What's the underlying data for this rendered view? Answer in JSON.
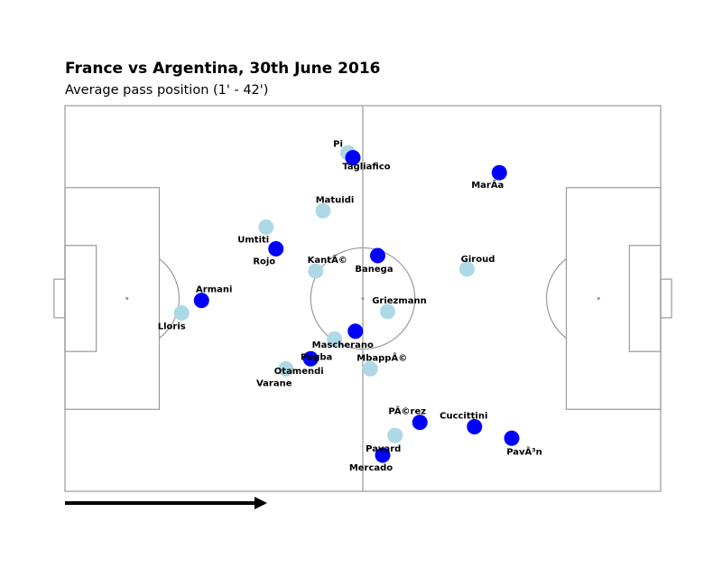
{
  "chart_data": {
    "type": "scatter",
    "title": "France vs Argentina, 30th June 2016",
    "subtitle": "Average pass position (1' - 42')",
    "x_range": [
      0,
      120
    ],
    "y_range": [
      0,
      80
    ],
    "direction_arrow": true,
    "series": [
      {
        "color": "#add8e6",
        "points": [
          {
            "name": "Lloris",
            "x": 23.5,
            "y": 37.0
          },
          {
            "name": "Umtiti",
            "x": 40.5,
            "y": 54.8
          },
          {
            "name": "KantÃ©",
            "x": 50.5,
            "y": 45.7
          },
          {
            "name": "Matuidi",
            "x": 52.0,
            "y": 58.2
          },
          {
            "name": "Pi",
            "x": 57.0,
            "y": 70.2
          },
          {
            "name": "Pogba",
            "x": 54.3,
            "y": 31.6
          },
          {
            "name": "Varane",
            "x": 44.5,
            "y": 25.4
          },
          {
            "name": "MbappÃ©",
            "x": 61.5,
            "y": 25.4
          },
          {
            "name": "Griezmann",
            "x": 65.0,
            "y": 37.3
          },
          {
            "name": "Giroud",
            "x": 81.0,
            "y": 46.1
          },
          {
            "name": "Pavard",
            "x": 66.5,
            "y": 11.6
          }
        ]
      },
      {
        "color": "#0000ff",
        "points": [
          {
            "name": "Armani",
            "x": 27.5,
            "y": 39.6
          },
          {
            "name": "Rojo",
            "x": 42.5,
            "y": 50.3
          },
          {
            "name": "Tagliafico",
            "x": 58.0,
            "y": 69.2
          },
          {
            "name": "Banega",
            "x": 63.0,
            "y": 48.9
          },
          {
            "name": "Mascherano",
            "x": 58.5,
            "y": 33.2
          },
          {
            "name": "Otamendi",
            "x": 49.5,
            "y": 27.5
          },
          {
            "name": "PÃ©rez",
            "x": 71.5,
            "y": 14.3
          },
          {
            "name": "Cuccittini",
            "x": 82.5,
            "y": 13.4
          },
          {
            "name": "Mercado",
            "x": 64.0,
            "y": 7.5
          },
          {
            "name": "MarÃa",
            "x": 87.5,
            "y": 66.1
          },
          {
            "name": "PavÃ³n",
            "x": 90.0,
            "y": 11.0
          }
        ]
      }
    ]
  }
}
